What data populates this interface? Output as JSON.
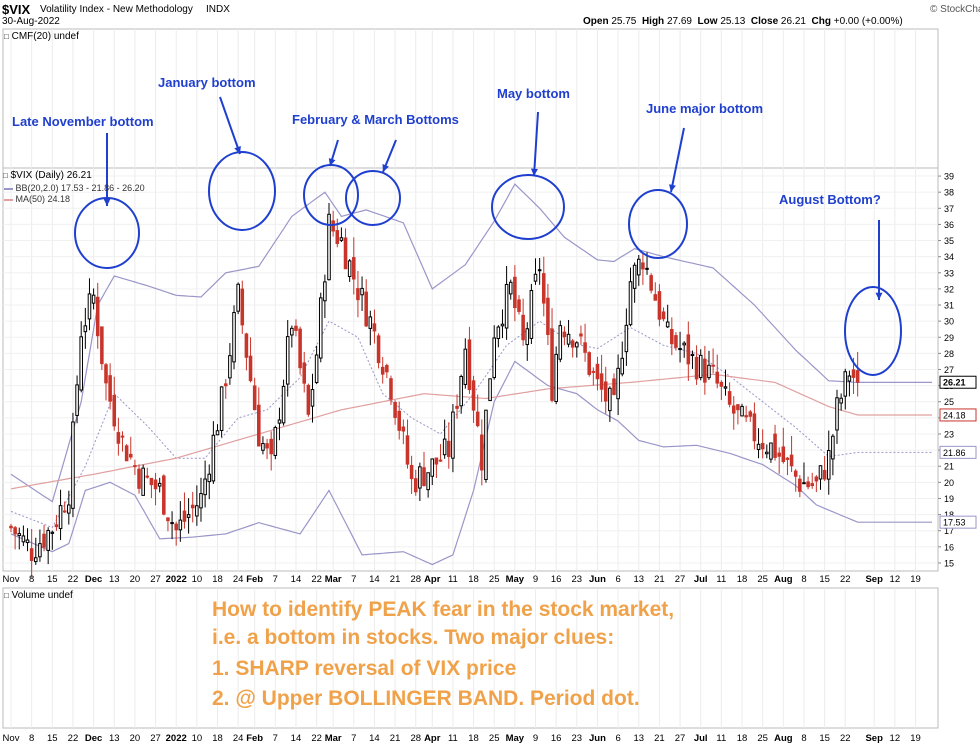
{
  "header": {
    "symbol": "$VIX",
    "name": "Volatility Index - New Methodology",
    "exchange": "INDX",
    "date": "30-Aug-2022",
    "open_label": "Open",
    "open": "25.75",
    "high_label": "High",
    "high": "27.69",
    "low_label": "Low",
    "low": "25.13",
    "close_label": "Close",
    "close": "26.21",
    "chg_label": "Chg",
    "chg": "+0.00 (+0.00%)",
    "copyright": "© StockCharts.com"
  },
  "panels": {
    "cmf": "CMF(20) undef",
    "volume": "Volume undef"
  },
  "legend": {
    "price": "$VIX (Daily) 26.21",
    "bb": "BB(20,2.0) 17.53 - 21.86 - 26.20",
    "ma": "MA(50) 24.18"
  },
  "annotations": [
    {
      "text": "Late November bottom"
    },
    {
      "text": "January bottom"
    },
    {
      "text": "February & March Bottoms"
    },
    {
      "text": "May bottom"
    },
    {
      "text": "June major bottom"
    },
    {
      "text": "August Bottom?"
    }
  ],
  "note_lines": [
    "How to identify PEAK fear in the stock market,",
    "i.e. a bottom in stocks. Two major clues:",
    "1. SHARP reversal of VIX price",
    "2. @ Upper BOLLINGER BAND. Period dot."
  ],
  "price_labels": {
    "close": "26.21",
    "ma": "24.18",
    "bb_mid": "21.86",
    "bb_low": "17.53"
  },
  "colors": {
    "up": "#000000",
    "down": "#c8352b",
    "bb": "#9a96c9",
    "ma": "#e0a0a0",
    "annotation": "#1f3fcf",
    "note": "#f0a24a"
  },
  "chart_data": {
    "type": "candlestick",
    "ylim": [
      14.5,
      39.5
    ],
    "y_ticks": [
      15,
      16,
      17,
      18,
      19,
      20,
      21,
      22,
      23,
      24,
      25,
      26,
      27,
      28,
      29,
      30,
      31,
      32,
      33,
      34,
      35,
      36,
      37,
      38,
      39
    ],
    "x_tick_labels": [
      "Nov",
      "8",
      "15",
      "22",
      "Dec",
      "13",
      "20",
      "27",
      "2022",
      "10",
      "18",
      "24",
      "Feb",
      "7",
      "14",
      "22",
      "Mar",
      "7",
      "14",
      "21",
      "28",
      "Apr",
      "11",
      "18",
      "25",
      "May",
      "9",
      "16",
      "23",
      "Jun",
      "6",
      "13",
      "21",
      "27",
      "Jul",
      "11",
      "18",
      "25",
      "Aug",
      "8",
      "15",
      "22",
      "Sep",
      "12",
      "19"
    ],
    "x_tick_index": [
      0,
      5,
      10,
      15,
      20,
      25,
      30,
      35,
      40,
      45,
      50,
      55,
      59,
      64,
      69,
      74,
      78,
      83,
      88,
      93,
      98,
      102,
      107,
      112,
      117,
      122,
      127,
      132,
      137,
      142,
      147,
      152,
      157,
      162,
      167,
      172,
      177,
      182,
      187,
      192,
      197,
      202,
      209,
      214,
      219
    ],
    "x_tick_bold": [
      false,
      false,
      false,
      false,
      true,
      false,
      false,
      false,
      true,
      false,
      false,
      false,
      true,
      false,
      false,
      false,
      true,
      false,
      false,
      false,
      false,
      true,
      false,
      false,
      false,
      true,
      false,
      false,
      false,
      true,
      false,
      false,
      false,
      false,
      true,
      false,
      false,
      false,
      true,
      false,
      false,
      false,
      true,
      false,
      false
    ],
    "key_points": {
      "index": [
        0,
        5,
        10,
        14,
        17,
        20,
        23,
        27,
        31,
        36,
        40,
        46,
        51,
        55,
        60,
        63,
        68,
        72,
        74,
        77,
        80,
        84,
        87,
        92,
        97,
        102,
        106,
        110,
        114,
        117,
        121,
        124,
        128,
        131,
        133,
        137,
        142,
        146,
        150,
        153,
        156,
        159,
        164,
        170,
        174,
        179,
        185,
        191,
        195,
        198,
        200,
        203,
        205
      ],
      "close": [
        17.2,
        15.8,
        17.2,
        19.5,
        29.5,
        31.5,
        26,
        22.5,
        20.5,
        19.5,
        17,
        19,
        25,
        31.5,
        23,
        21,
        30,
        24,
        28,
        36,
        35,
        32,
        30,
        26,
        20,
        21,
        22,
        28.5,
        21.5,
        29.5,
        32,
        28.5,
        33.5,
        26,
        30,
        29,
        26,
        24.5,
        32.5,
        34,
        31.5,
        29,
        27.8,
        26.5,
        24.6,
        23.2,
        22,
        20,
        19.8,
        21.5,
        24.5,
        26.9,
        26.21
      ]
    },
    "bb_upper": {
      "index": [
        0,
        10,
        17,
        21,
        25,
        33,
        40,
        46,
        52,
        60,
        68,
        76,
        80,
        86,
        95,
        102,
        110,
        117,
        122,
        128,
        134,
        142,
        146,
        151,
        158,
        170,
        180,
        190,
        198,
        205
      ],
      "value": [
        20.5,
        18.8,
        25,
        31,
        32.8,
        32.2,
        31.6,
        31.5,
        33,
        33.4,
        36.5,
        38,
        36.5,
        36.9,
        36.1,
        32,
        33.5,
        36.2,
        38.5,
        37,
        35.2,
        33.8,
        33.7,
        34.5,
        34,
        33.3,
        31,
        28.2,
        26.3,
        26.2
      ]
    },
    "bb_lower": {
      "index": [
        0,
        10,
        14,
        18,
        24,
        30,
        36,
        44,
        52,
        60,
        70,
        77,
        85,
        95,
        102,
        107,
        112,
        117,
        122,
        130,
        137,
        142,
        147,
        152,
        158,
        166,
        174,
        182,
        190,
        195,
        205
      ],
      "value": [
        16.8,
        15.7,
        16.2,
        19.5,
        20,
        19.2,
        16.5,
        16.6,
        16.8,
        17.5,
        16.8,
        19.5,
        15.5,
        15.7,
        14.9,
        15.5,
        19.5,
        25,
        27.5,
        26,
        25.5,
        24.5,
        23.8,
        22.6,
        22.2,
        22.3,
        21.8,
        21.1,
        19.8,
        18.6,
        17.53
      ]
    },
    "bb_mid": {
      "index": [
        0,
        10,
        18,
        25,
        33,
        40,
        47,
        55,
        62,
        70,
        77,
        84,
        90,
        97,
        104,
        112,
        120,
        128,
        136,
        142,
        150,
        158,
        166,
        174,
        182,
        190,
        198,
        205
      ],
      "value": [
        18.2,
        17.2,
        21,
        25.5,
        23.5,
        21.5,
        21.5,
        24,
        24.5,
        26.5,
        30,
        29,
        25.5,
        24,
        23,
        25.5,
        28.5,
        30,
        28.6,
        28.3,
        29.6,
        28.5,
        28,
        26.6,
        25,
        23.4,
        21.6,
        21.86
      ]
    },
    "ma50": {
      "index": [
        0,
        20,
        40,
        60,
        80,
        100,
        115,
        130,
        150,
        170,
        185,
        198,
        205
      ],
      "value": [
        19.6,
        20.5,
        21.5,
        23,
        24.5,
        25.5,
        25.2,
        25.8,
        26.2,
        26.7,
        26.2,
        24.7,
        24.18
      ]
    }
  }
}
